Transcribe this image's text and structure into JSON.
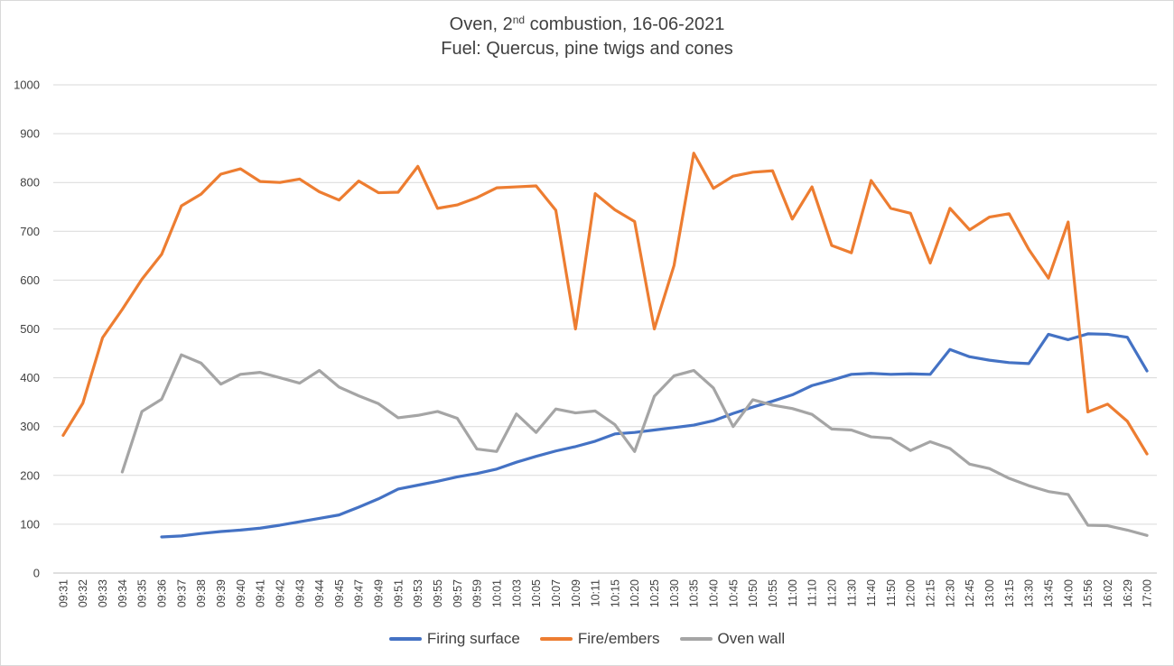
{
  "chart_data": {
    "type": "line",
    "title_line1": {
      "prefix": "Oven, 2",
      "sup": "nd",
      "suffix": " combustion, 16-06-2021"
    },
    "title_line2": "Fuel: Quercus, pine twigs and cones",
    "ylim": [
      0,
      1000
    ],
    "yticks": [
      0,
      100,
      200,
      300,
      400,
      500,
      600,
      700,
      800,
      900,
      1000
    ],
    "grid": true,
    "legend_position": "bottom",
    "categories": [
      "09:31",
      "09:32",
      "09:33",
      "09:34",
      "09:35",
      "09:36",
      "09:37",
      "09:38",
      "09:39",
      "09:40",
      "09:41",
      "09:42",
      "09:43",
      "09:44",
      "09:45",
      "09:47",
      "09:49",
      "09:51",
      "09:53",
      "09:55",
      "09:57",
      "09:59",
      "10:01",
      "10:03",
      "10:05",
      "10:07",
      "10:09",
      "10:11",
      "10:15",
      "10:20",
      "10:25",
      "10:30",
      "10:35",
      "10:40",
      "10:45",
      "10:50",
      "10:55",
      "11:00",
      "11:10",
      "11:20",
      "11:30",
      "11:40",
      "11:50",
      "12:00",
      "12:15",
      "12:30",
      "12:45",
      "13:00",
      "13:15",
      "13:30",
      "13:45",
      "14:00",
      "15:56",
      "16:02",
      "16:29",
      "17:00"
    ],
    "series": [
      {
        "name": "Firing surface",
        "color": "#4472c4",
        "values": [
          null,
          null,
          null,
          null,
          null,
          74,
          76,
          81,
          85,
          88,
          92,
          98,
          105,
          112,
          119,
          135,
          152,
          172,
          180,
          188,
          197,
          204,
          213,
          227,
          239,
          250,
          259,
          270,
          285,
          288,
          293,
          298,
          303,
          312,
          327,
          340,
          352,
          365,
          384,
          395,
          407,
          409,
          407,
          408,
          407,
          458,
          443,
          436,
          431,
          429,
          489,
          478,
          490,
          489,
          483,
          414
        ]
      },
      {
        "name": "Fire/embers",
        "color": "#ed7d31",
        "values": [
          282,
          348,
          482,
          540,
          602,
          653,
          752,
          776,
          817,
          828,
          802,
          800,
          807,
          781,
          764,
          803,
          779,
          780,
          833,
          747,
          754,
          769,
          789,
          791,
          793,
          743,
          500,
          777,
          744,
          720,
          500,
          630,
          860,
          788,
          813,
          821,
          824,
          725,
          791,
          671,
          656,
          804,
          747,
          737,
          635,
          747,
          703,
          729,
          736,
          663,
          604,
          719,
          330,
          346,
          311,
          244
        ]
      },
      {
        "name": "Oven wall",
        "color": "#a5a5a5",
        "values": [
          null,
          null,
          null,
          207,
          331,
          356,
          447,
          430,
          387,
          407,
          411,
          400,
          389,
          415,
          381,
          363,
          347,
          318,
          323,
          331,
          317,
          254,
          249,
          326,
          288,
          336,
          328,
          332,
          304,
          249,
          362,
          404,
          415,
          379,
          300,
          355,
          344,
          337,
          325,
          295,
          293,
          279,
          276,
          251,
          269,
          255,
          223,
          214,
          194,
          179,
          167,
          161,
          98,
          97,
          88,
          77
        ]
      }
    ]
  }
}
